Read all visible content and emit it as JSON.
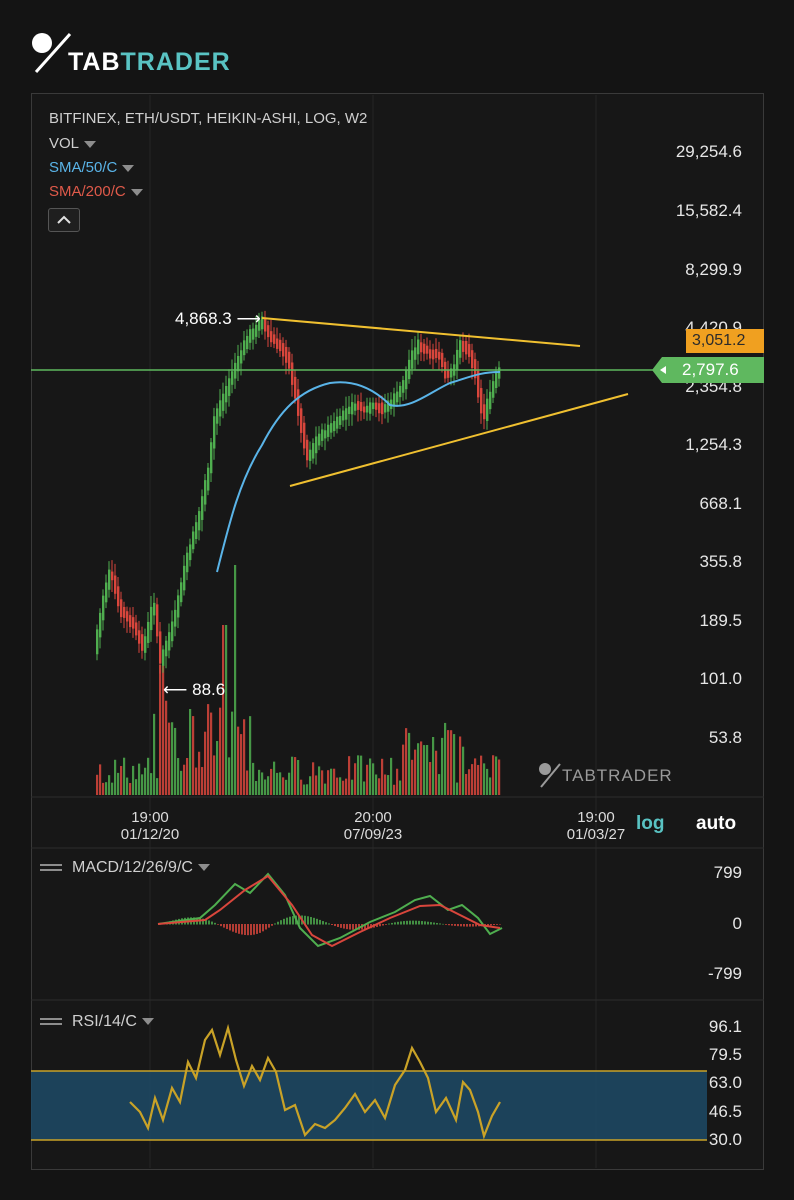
{
  "brand": {
    "logo_part1": "TAB",
    "logo_part2": "TRADER",
    "watermark": "TABTRADER"
  },
  "chart": {
    "header": "BITFINEX, ETH/USDT, HEIKIN-ASHI, LOG, W2",
    "indicators": [
      {
        "name": "VOL",
        "color": "#cfcfcf"
      },
      {
        "name": "SMA/50/C",
        "color": "#5ab4e8"
      },
      {
        "name": "SMA/200/C",
        "color": "#e05a4a"
      }
    ],
    "price_axis": [
      "29,254.6",
      "15,582.4",
      "8,299.9",
      "4,420.9",
      "2,354.8",
      "1,254.3",
      "668.1",
      "355.8",
      "189.5",
      "101.0",
      "53.8"
    ],
    "current_price": "2,797.6",
    "alert_price": "3,051.2",
    "annotations": {
      "high": "4,868.3",
      "low": "88.6"
    },
    "time_axis": [
      {
        "time": "19:00",
        "date": "01/12/20"
      },
      {
        "time": "20:00",
        "date": "07/09/23"
      },
      {
        "time": "19:00",
        "date": "01/03/27"
      }
    ],
    "scale_buttons": {
      "log": "log",
      "auto": "auto"
    },
    "colors": {
      "up": "#4fae4f",
      "down": "#d9463c",
      "sma50": "#5ab4e8",
      "trendline": "#f0c030",
      "hline": "#5fb85f"
    }
  },
  "macd": {
    "title": "MACD/12/26/9/C",
    "axis": [
      "799",
      "0",
      "-799"
    ]
  },
  "rsi": {
    "title": "RSI/14/C",
    "axis": [
      "96.1",
      "79.5",
      "63.0",
      "46.5",
      "30.0"
    ],
    "band_color": "#1d4a66",
    "line_color": "#c9a227"
  }
}
